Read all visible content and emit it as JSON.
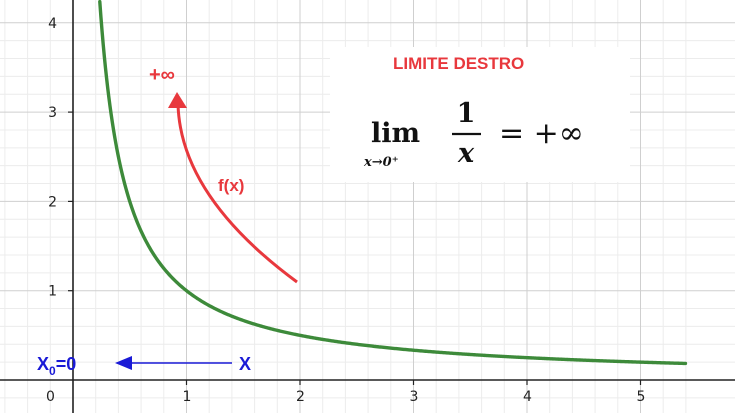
{
  "chart_data": {
    "type": "line",
    "title": "LIMITE DESTRO",
    "xlim": [
      -0.65,
      5.4
    ],
    "ylim": [
      -0.35,
      4.05
    ],
    "x_ticks": [
      0,
      1,
      2,
      3,
      4,
      5
    ],
    "x_tick_labels": [
      "0",
      "1",
      "2",
      "3",
      "4",
      "5"
    ],
    "y_ticks": [
      1,
      2,
      3
    ],
    "y_tick_labels": [
      "1",
      "2",
      "3"
    ],
    "y_top_partial_label": "4",
    "grid": true,
    "series": [
      {
        "function": "1/x",
        "color": "#3d8a3a",
        "x": [
          0.25,
          0.3,
          0.4,
          0.5,
          0.6,
          0.8,
          1,
          1.25,
          1.5,
          2,
          2.5,
          3,
          3.5,
          4,
          4.5,
          5,
          5.4
        ],
        "y": [
          4,
          3.333,
          2.5,
          2,
          1.667,
          1.25,
          1,
          0.8,
          0.667,
          0.5,
          0.4,
          0.333,
          0.286,
          0.25,
          0.222,
          0.2,
          0.185
        ]
      }
    ],
    "formula": {
      "operator": "lim",
      "subscript": "x→0⁺",
      "numerator": "1",
      "denominator": "x",
      "rhs": "= +∞"
    },
    "annotations": {
      "plus_infinity": "+∞",
      "fx_label": "f(x)",
      "x0_main": "X",
      "x0_sub": "0",
      "x0_rest": "=0",
      "x_label": "X"
    },
    "colors": {
      "curve": "#3d8a3a",
      "red_annotation": "#e8383d",
      "title": "#e8383d",
      "blue_annotation": "#1a1ad6",
      "grid_major": "#cfcfcf",
      "grid_minor": "#ececec",
      "axis": "#222222"
    }
  }
}
